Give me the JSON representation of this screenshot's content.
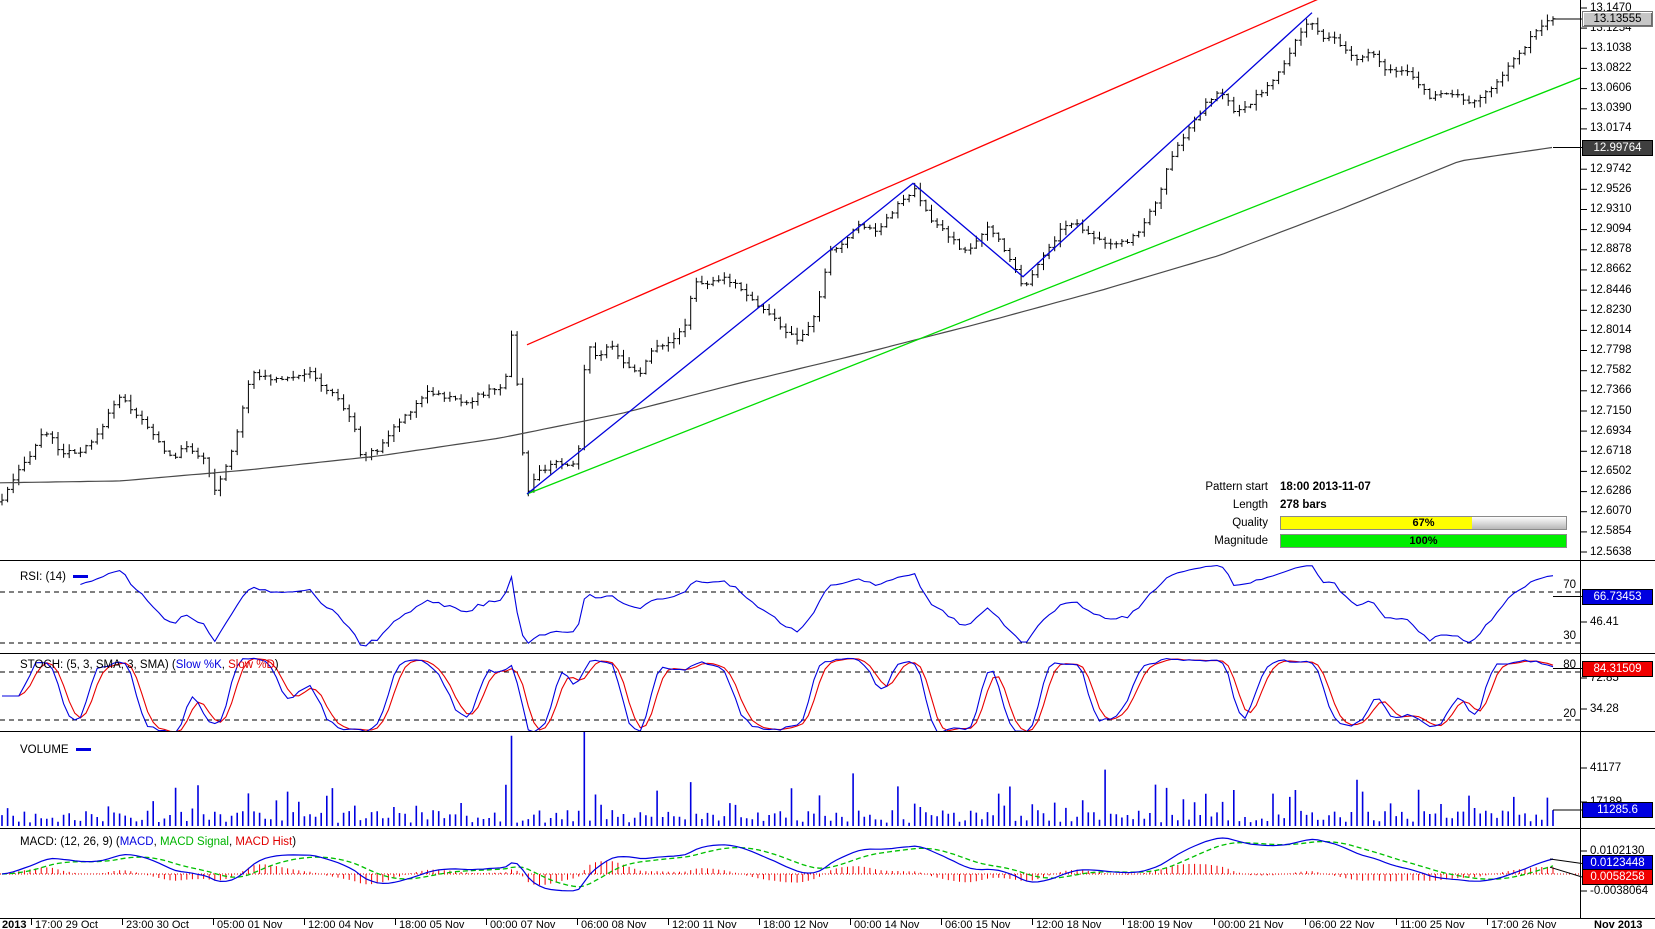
{
  "chart_data": {
    "type": "ohlc-multi-panel",
    "bars": 278,
    "colors": {
      "bars": "#000000",
      "ma": "#4a4a4a",
      "trend_red": "#ff0000",
      "trend_green": "#00dc00",
      "zigzag_blue": "#0000dc",
      "indicator_blue": "#0000e0",
      "stoch_d_red": "#e80000",
      "macd_signal_green": "#00c000",
      "macd_hist_red": "#f00000",
      "box_blue": "#0000e0",
      "box_red": "#f00000",
      "quality_yellow": "#ffff00",
      "magnitude_green": "#00ee00"
    },
    "price": {
      "current": "13.13555",
      "ma_current": "12.99764",
      "axis_ticks": [
        "13.1470",
        "13.1254",
        "13.1038",
        "13.0822",
        "13.0606",
        "13.0390",
        "13.0174",
        "12.9742",
        "12.9526",
        "12.9310",
        "12.9094",
        "12.8878",
        "12.8662",
        "12.8446",
        "12.8230",
        "12.8014",
        "12.7798",
        "12.7582",
        "12.7366",
        "12.7150",
        "12.6934",
        "12.6718",
        "12.6502",
        "12.6286",
        "12.6070",
        "12.5854",
        "12.5638"
      ],
      "anchors": [
        [
          0,
          12.616
        ],
        [
          18,
          12.648
        ],
        [
          45,
          12.695
        ],
        [
          60,
          12.672
        ],
        [
          78,
          12.668
        ],
        [
          95,
          12.684
        ],
        [
          118,
          12.732
        ],
        [
          138,
          12.71
        ],
        [
          158,
          12.682
        ],
        [
          172,
          12.664
        ],
        [
          188,
          12.678
        ],
        [
          205,
          12.661
        ],
        [
          215,
          12.627
        ],
        [
          232,
          12.672
        ],
        [
          252,
          12.76
        ],
        [
          268,
          12.748
        ],
        [
          288,
          12.752
        ],
        [
          308,
          12.757
        ],
        [
          322,
          12.742
        ],
        [
          338,
          12.728
        ],
        [
          352,
          12.704
        ],
        [
          362,
          12.664
        ],
        [
          378,
          12.674
        ],
        [
          395,
          12.698
        ],
        [
          412,
          12.718
        ],
        [
          428,
          12.737
        ],
        [
          448,
          12.729
        ],
        [
          468,
          12.725
        ],
        [
          488,
          12.736
        ],
        [
          505,
          12.743
        ],
        [
          513,
          12.81
        ],
        [
          520,
          12.7
        ],
        [
          527,
          12.626
        ],
        [
          538,
          12.648
        ],
        [
          552,
          12.66
        ],
        [
          565,
          12.654
        ],
        [
          578,
          12.662
        ],
        [
          586,
          12.788
        ],
        [
          598,
          12.773
        ],
        [
          612,
          12.787
        ],
        [
          625,
          12.763
        ],
        [
          640,
          12.757
        ],
        [
          655,
          12.784
        ],
        [
          670,
          12.791
        ],
        [
          683,
          12.8
        ],
        [
          695,
          12.855
        ],
        [
          710,
          12.851
        ],
        [
          726,
          12.857
        ],
        [
          740,
          12.849
        ],
        [
          755,
          12.831
        ],
        [
          770,
          12.818
        ],
        [
          785,
          12.801
        ],
        [
          800,
          12.789
        ],
        [
          815,
          12.818
        ],
        [
          830,
          12.885
        ],
        [
          845,
          12.897
        ],
        [
          860,
          12.917
        ],
        [
          875,
          12.907
        ],
        [
          890,
          12.927
        ],
        [
          905,
          12.943
        ],
        [
          915,
          12.951
        ],
        [
          930,
          12.92
        ],
        [
          945,
          12.908
        ],
        [
          960,
          12.888
        ],
        [
          975,
          12.893
        ],
        [
          988,
          12.912
        ],
        [
          1000,
          12.897
        ],
        [
          1012,
          12.875
        ],
        [
          1023,
          12.847
        ],
        [
          1035,
          12.868
        ],
        [
          1048,
          12.888
        ],
        [
          1062,
          12.912
        ],
        [
          1075,
          12.917
        ],
        [
          1088,
          12.907
        ],
        [
          1102,
          12.897
        ],
        [
          1116,
          12.892
        ],
        [
          1130,
          12.898
        ],
        [
          1145,
          12.917
        ],
        [
          1158,
          12.945
        ],
        [
          1170,
          12.982
        ],
        [
          1182,
          13.007
        ],
        [
          1195,
          13.027
        ],
        [
          1208,
          13.047
        ],
        [
          1222,
          13.057
        ],
        [
          1235,
          13.034
        ],
        [
          1247,
          13.04
        ],
        [
          1260,
          13.057
        ],
        [
          1272,
          13.067
        ],
        [
          1285,
          13.087
        ],
        [
          1297,
          13.117
        ],
        [
          1310,
          13.135
        ],
        [
          1322,
          13.112
        ],
        [
          1334,
          13.115
        ],
        [
          1346,
          13.1
        ],
        [
          1358,
          13.091
        ],
        [
          1370,
          13.099
        ],
        [
          1382,
          13.086
        ],
        [
          1394,
          13.076
        ],
        [
          1406,
          13.08
        ],
        [
          1418,
          13.066
        ],
        [
          1430,
          13.052
        ],
        [
          1445,
          13.058
        ],
        [
          1460,
          13.05
        ],
        [
          1475,
          13.045
        ],
        [
          1490,
          13.06
        ],
        [
          1505,
          13.08
        ],
        [
          1520,
          13.1
        ],
        [
          1535,
          13.12
        ],
        [
          1545,
          13.13
        ],
        [
          1553,
          13.1355
        ]
      ],
      "ma_anchors": [
        [
          0,
          12.638
        ],
        [
          120,
          12.64
        ],
        [
          250,
          12.652
        ],
        [
          380,
          12.667
        ],
        [
          500,
          12.686
        ],
        [
          620,
          12.712
        ],
        [
          740,
          12.745
        ],
        [
          860,
          12.776
        ],
        [
          980,
          12.809
        ],
        [
          1100,
          12.844
        ],
        [
          1220,
          12.882
        ],
        [
          1340,
          12.931
        ],
        [
          1460,
          12.983
        ],
        [
          1553,
          12.9976
        ]
      ],
      "overlays": {
        "red_trendline": [
          [
            527,
            12.786
          ],
          [
            1330,
            13.162
          ]
        ],
        "green_trendline": [
          [
            527,
            12.626
          ],
          [
            1580,
            13.072
          ]
        ],
        "blue_zigzag": [
          [
            527,
            12.626
          ],
          [
            913,
            12.959
          ],
          [
            1023,
            12.859
          ],
          [
            1312,
            13.142
          ]
        ]
      }
    },
    "rsi": {
      "label": "RSI: (14)",
      "levels": [
        "70",
        "30"
      ],
      "ticks": [
        "46.41"
      ],
      "current": "66.73453"
    },
    "stoch": {
      "prefix": "STOCH: (5, 3, SMA, 3, SMA) (",
      "k_label": "Slow %K",
      "sep": ", ",
      "d_label": "Slow %D",
      "suffix": ")",
      "levels": [
        "80",
        "20"
      ],
      "ticks": [
        "72.85",
        "34.28"
      ],
      "current": "84.31509"
    },
    "volume": {
      "label": "VOLUME",
      "ticks": [
        "41177",
        "17189"
      ],
      "current": "11285.6",
      "spikes": [
        [
          91,
          68000
        ],
        [
          104,
          76000
        ],
        [
          117,
          26000
        ],
        [
          123,
          30000
        ],
        [
          152,
          40000
        ],
        [
          160,
          28000
        ],
        [
          197,
          38000
        ],
        [
          206,
          30000
        ],
        [
          220,
          24000
        ],
        [
          231,
          27000
        ],
        [
          243,
          26000
        ],
        [
          262,
          22000
        ],
        [
          270,
          20000
        ]
      ]
    },
    "macd": {
      "prefix": "MACD: (12, 26, 9) (",
      "macd_label": "MACD",
      "sep": ", ",
      "signal_label": "MACD Signal",
      "sep2": ", ",
      "hist_label": "MACD Hist",
      "suffix": ")",
      "ticks": [
        "0.0102130",
        "-0.0038064"
      ],
      "macd_current": "0.0123448",
      "hist_current": "0.0058258"
    },
    "x_axis": [
      "2013",
      "17:00 29 Oct",
      "23:00 30 Oct",
      "05:00 01 Nov",
      "12:00 04 Nov",
      "18:00 05 Nov",
      "00:00 07 Nov",
      "06:00 08 Nov",
      "12:00 11 Nov",
      "18:00 12 Nov",
      "00:00 14 Nov",
      "06:00 15 Nov",
      "12:00 18 Nov",
      "18:00 19 Nov",
      "00:00 21 Nov",
      "06:00 22 Nov",
      "11:00 25 Nov",
      "17:00 26 Nov"
    ],
    "x_axis_right": "Nov 2013",
    "pattern": {
      "start_label": "Pattern start",
      "start": "18:00 2013-11-07",
      "length_label": "Length",
      "length": "278 bars",
      "quality_label": "Quality",
      "quality": "67%",
      "quality_pct": 67,
      "magnitude_label": "Magnitude",
      "magnitude": "100%",
      "magnitude_pct": 100
    }
  }
}
